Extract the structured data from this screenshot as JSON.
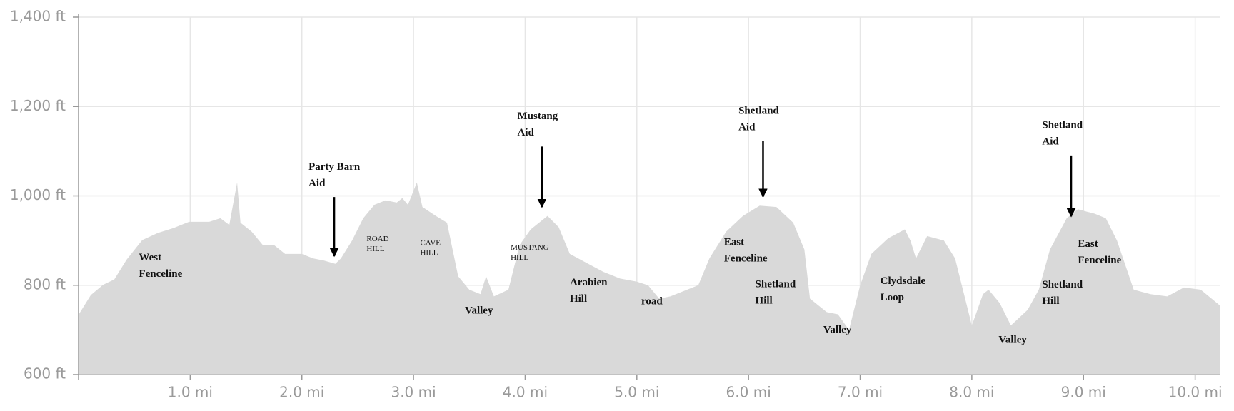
{
  "chart_data": {
    "type": "area",
    "color": "#d9d9d9",
    "grid": true,
    "x": [
      0.0,
      0.11,
      0.22,
      0.32,
      0.43,
      0.57,
      0.71,
      0.85,
      0.99,
      1.17,
      1.27,
      1.35,
      1.42,
      1.45,
      1.55,
      1.65,
      1.75,
      1.85,
      2.0,
      2.1,
      2.2,
      2.3,
      2.35,
      2.45,
      2.55,
      2.65,
      2.75,
      2.85,
      2.9,
      2.95,
      3.03,
      3.08,
      3.2,
      3.3,
      3.4,
      3.5,
      3.6,
      3.65,
      3.72,
      3.85,
      3.95,
      4.05,
      4.2,
      4.3,
      4.4,
      4.55,
      4.7,
      4.85,
      5.0,
      5.1,
      5.2,
      5.3,
      5.4,
      5.55,
      5.65,
      5.8,
      5.95,
      6.1,
      6.25,
      6.4,
      6.5,
      6.55,
      6.7,
      6.8,
      6.9,
      7.0,
      7.1,
      7.25,
      7.4,
      7.45,
      7.5,
      7.6,
      7.75,
      7.85,
      7.95,
      8.0,
      8.1,
      8.15,
      8.25,
      8.35,
      8.5,
      8.6,
      8.7,
      8.85,
      8.95,
      9.1,
      9.2,
      9.3,
      9.45,
      9.6,
      9.75,
      9.9,
      10.05,
      10.22
    ],
    "values": [
      734,
      778,
      801,
      813,
      857,
      901,
      917,
      928,
      942,
      942,
      950,
      935,
      1030,
      940,
      920,
      890,
      890,
      870,
      870,
      860,
      855,
      848,
      860,
      900,
      950,
      980,
      990,
      985,
      995,
      980,
      1030,
      975,
      955,
      940,
      820,
      790,
      780,
      820,
      775,
      790,
      890,
      925,
      955,
      930,
      870,
      850,
      830,
      815,
      808,
      800,
      770,
      775,
      785,
      800,
      860,
      920,
      955,
      978,
      975,
      940,
      880,
      770,
      740,
      735,
      700,
      800,
      870,
      905,
      925,
      900,
      860,
      910,
      900,
      860,
      760,
      710,
      780,
      790,
      760,
      710,
      745,
      790,
      880,
      950,
      970,
      960,
      950,
      900,
      790,
      780,
      775,
      795,
      790,
      755
    ],
    "xlim": [
      0,
      10.22
    ],
    "ylim": [
      600,
      1400
    ],
    "xticks": [
      {
        "value": 1,
        "label": "1.0 mi"
      },
      {
        "value": 2,
        "label": "2.0 mi"
      },
      {
        "value": 3,
        "label": "3.0 mi"
      },
      {
        "value": 4,
        "label": "4.0 mi"
      },
      {
        "value": 5,
        "label": "5.0 mi"
      },
      {
        "value": 6,
        "label": "6.0 mi"
      },
      {
        "value": 7,
        "label": "7.0 mi"
      },
      {
        "value": 8,
        "label": "8.0 mi"
      },
      {
        "value": 9,
        "label": "9.0 mi"
      },
      {
        "value": 10,
        "label": "10.0 mi"
      }
    ],
    "yticks": [
      {
        "value": 600,
        "label": "600 ft"
      },
      {
        "value": 800,
        "label": "800 ft"
      },
      {
        "value": 1000,
        "label": "1,000 ft"
      },
      {
        "value": 1200,
        "label": "1,200 ft"
      },
      {
        "value": 1400,
        "label": "1,400 ft"
      }
    ],
    "annotations": [
      {
        "lines": [
          "West",
          "Fenceline"
        ],
        "x": 0.54,
        "y": 871
      },
      {
        "lines": [
          "Party Barn",
          "Aid"
        ],
        "x": 2.06,
        "y": 1074,
        "xy": [
          2.29,
          865
        ]
      },
      {
        "lines": [
          "ROAD",
          "HILL"
        ],
        "x": 2.58,
        "y": 910,
        "small": true
      },
      {
        "lines": [
          "CAVE",
          "HILL"
        ],
        "x": 3.06,
        "y": 901,
        "small": true
      },
      {
        "lines": [
          "Mustang",
          "Aid"
        ],
        "x": 3.93,
        "y": 1187,
        "xy": [
          4.15,
          975
        ]
      },
      {
        "lines": [
          "MUSTANG",
          "HILL"
        ],
        "x": 3.87,
        "y": 891,
        "small": true
      },
      {
        "lines": [
          "Valley"
        ],
        "x": 3.46,
        "y": 752
      },
      {
        "lines": [
          "Arabien",
          "Hill"
        ],
        "x": 4.4,
        "y": 815
      },
      {
        "lines": [
          "road"
        ],
        "x": 5.04,
        "y": 773
      },
      {
        "lines": [
          "Shetland",
          "Aid"
        ],
        "x": 5.91,
        "y": 1199,
        "xy": [
          6.13,
          998
        ]
      },
      {
        "lines": [
          "East",
          "Fenceline"
        ],
        "x": 5.78,
        "y": 905
      },
      {
        "lines": [
          "Shetland",
          "Hill"
        ],
        "x": 6.06,
        "y": 811
      },
      {
        "lines": [
          "Valley"
        ],
        "x": 6.67,
        "y": 709
      },
      {
        "lines": [
          "Clydsdale",
          "Loop"
        ],
        "x": 7.18,
        "y": 818
      },
      {
        "lines": [
          "Valley"
        ],
        "x": 8.24,
        "y": 686
      },
      {
        "lines": [
          "Shetland",
          "Aid"
        ],
        "x": 8.63,
        "y": 1167,
        "xy": [
          8.89,
          954
        ]
      },
      {
        "lines": [
          "East",
          "Fenceline"
        ],
        "x": 8.95,
        "y": 901
      },
      {
        "lines": [
          "Shetland",
          "Hill"
        ],
        "x": 8.63,
        "y": 810
      }
    ]
  }
}
